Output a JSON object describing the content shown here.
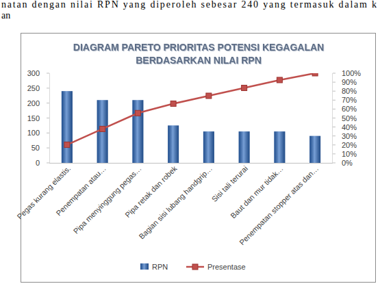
{
  "chart_data": {
    "type": "bar",
    "title": "DIAGRAM PARETO PRIORITAS POTENSI KEGAGALAN\nBERDASARKAN NILAI RPN",
    "annotations": [
      "natan dengan nilai RPN yang diperoleh sebesar 240 yang termasuk dalam k",
      "an"
    ],
    "categories": [
      "Pegas kurang elastis.",
      "Penempatan atau…",
      "Pipa menyinggung pegas…",
      "Pipa retak dan robek",
      "Bagian sisi lubang handgrip…",
      "Sisi tali terurai",
      "Baut dan mur tidak…",
      "Penempatan stopper atas dan…"
    ],
    "series": [
      {
        "name": "RPN",
        "type": "bar",
        "color": "#2f6cc0",
        "values": [
          240,
          210,
          210,
          125,
          105,
          105,
          105,
          90
        ]
      },
      {
        "name": "Presentase",
        "type": "line",
        "axis": "y2",
        "color": "#c0504d",
        "marker": "square",
        "values": [
          20.2,
          37.8,
          55.5,
          66,
          74.8,
          83.6,
          92.4,
          100
        ]
      }
    ],
    "ylim": [
      0,
      300
    ],
    "yticks": [
      0,
      50,
      100,
      150,
      200,
      250,
      300
    ],
    "y2lim": [
      0,
      100
    ],
    "y2ticks": [
      {
        "value": 0,
        "label": "0%"
      },
      {
        "value": 10,
        "label": "10%"
      },
      {
        "value": 20,
        "label": "20%"
      },
      {
        "value": 30,
        "label": "30%"
      },
      {
        "value": 40,
        "label": "40%"
      },
      {
        "value": 50,
        "label": "50%"
      },
      {
        "value": 60,
        "label": "60%"
      },
      {
        "value": 70,
        "label": "70%"
      },
      {
        "value": 80,
        "label": "80%"
      },
      {
        "value": 90,
        "label": "90%"
      },
      {
        "value": 100,
        "label": "100%"
      }
    ],
    "grid": false,
    "legend": "bottom"
  }
}
